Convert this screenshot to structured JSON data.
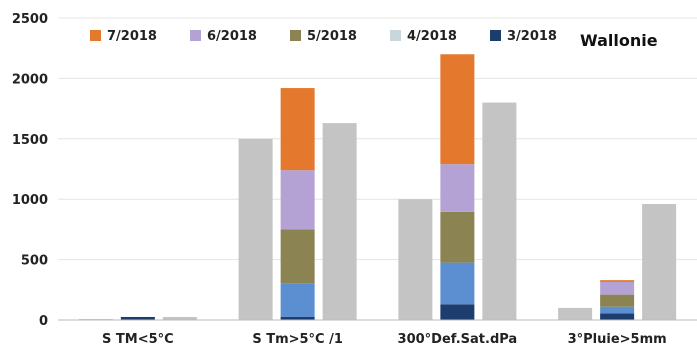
{
  "chart_data": {
    "type": "bar",
    "title": "Wallonie",
    "xlabel": "",
    "ylabel": "",
    "ylim": [
      0,
      2500
    ],
    "yticks": [
      0,
      500,
      1000,
      1500,
      2000,
      2500
    ],
    "grid": true,
    "legend_position": "top",
    "categories": [
      "S TM<5°C",
      "S Tm>5°C /1",
      "300°Def.Sat.dPa",
      "3°Pluie>5mm"
    ],
    "reference_left": [
      8,
      1500,
      1000,
      100
    ],
    "reference_right": [
      25,
      1630,
      1800,
      960
    ],
    "reference_color": "#c4c4c4",
    "series": [
      {
        "name": "3/2018",
        "color": "#1d3d6e",
        "values": [
          25,
          25,
          130,
          55
        ]
      },
      {
        "name": "4/2018",
        "color": "#5b8fd1",
        "values": [
          0,
          275,
          345,
          55
        ]
      },
      {
        "name": "5/2018",
        "color": "#8c8352",
        "values": [
          0,
          450,
          420,
          100
        ]
      },
      {
        "name": "6/2018",
        "color": "#b3a2d3",
        "values": [
          0,
          490,
          395,
          105
        ]
      },
      {
        "name": "7/2018",
        "color": "#e4782d",
        "values": [
          0,
          680,
          910,
          15
        ]
      }
    ],
    "legend_order": [
      "7/2018",
      "6/2018",
      "5/2018",
      "4/2018",
      "3/2018"
    ],
    "legend_swatch_colors": {
      "7/2018": "#e4782d",
      "6/2018": "#b3a2d3",
      "5/2018": "#8c8352",
      "4/2018": "#c9d6de",
      "3/2018": "#1d3d6e"
    }
  }
}
